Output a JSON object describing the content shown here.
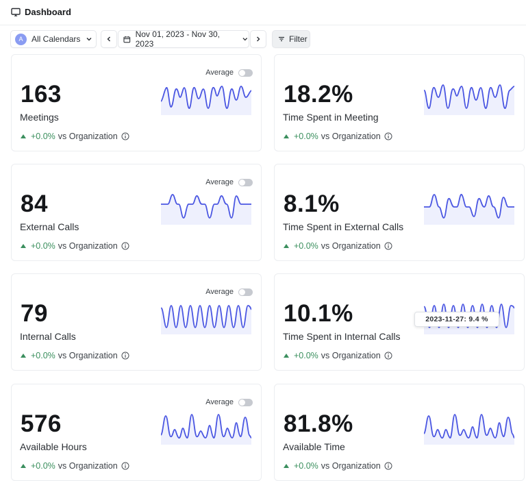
{
  "header": {
    "title": "Dashboard",
    "icon": "monitor-icon"
  },
  "toolbar": {
    "calendar_avatar": "A",
    "calendar_label": "All Calendars",
    "date_range": "Nov 01, 2023 - Nov 30, 2023",
    "filter_label": "Filter"
  },
  "cards": [
    {
      "value": "163",
      "label": "Meetings",
      "delta": "+0.0%",
      "compare": "vs Organization",
      "average_label": "Average",
      "average_on": false
    },
    {
      "value": "18.2%",
      "label": "Time Spent in Meeting",
      "delta": "+0.0%",
      "compare": "vs Organization"
    },
    {
      "value": "84",
      "label": "External Calls",
      "delta": "+0.0%",
      "compare": "vs Organization",
      "average_label": "Average",
      "average_on": false
    },
    {
      "value": "8.1%",
      "label": "Time Spent in External Calls",
      "delta": "+0.0%",
      "compare": "vs Organization"
    },
    {
      "value": "79",
      "label": "Internal Calls",
      "delta": "+0.0%",
      "compare": "vs Organization",
      "average_label": "Average",
      "average_on": false
    },
    {
      "value": "10.1%",
      "label": "Time Spent in Internal Calls",
      "delta": "+0.0%",
      "compare": "vs Organization"
    },
    {
      "value": "576",
      "label": "Available Hours",
      "delta": "+0.0%",
      "compare": "vs Organization",
      "average_label": "Average",
      "average_on": false
    },
    {
      "value": "81.8%",
      "label": "Available Time",
      "delta": "+0.0%",
      "compare": "vs Organization"
    }
  ],
  "tooltip": {
    "text": "2023-11-27: 9.4 %"
  },
  "colors": {
    "positive": "#3b8f5e",
    "spark_line": "#4a56e2",
    "spark_fill": "#eef0fd",
    "avatar": "#8a9cf2"
  }
}
